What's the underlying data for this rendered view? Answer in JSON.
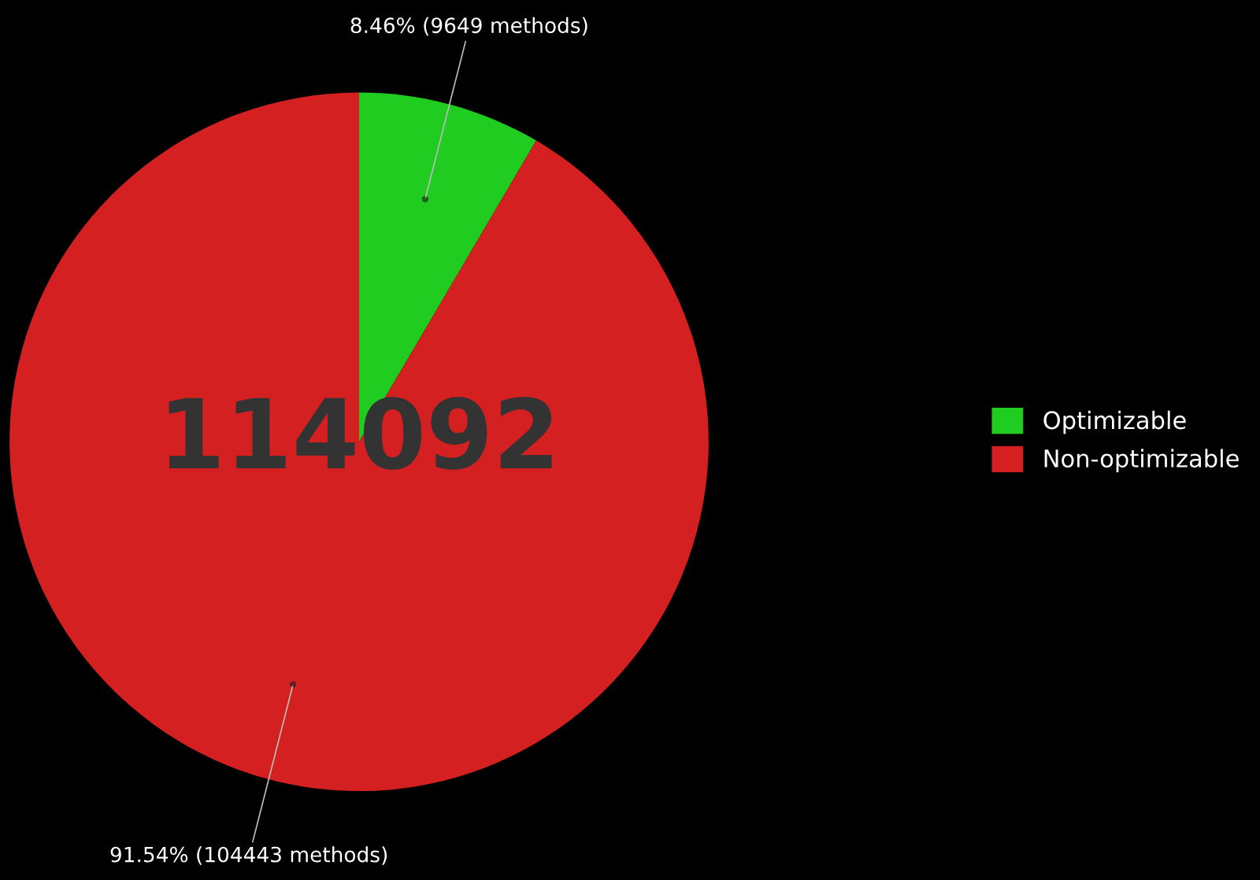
{
  "chart_data": {
    "type": "pie",
    "categories": [
      "Optimizable",
      "Non-optimizable"
    ],
    "values": [
      9649,
      104443
    ],
    "colors": [
      "#1fcc1f",
      "#d42020"
    ],
    "value_labels": [
      "8.46% (9649 methods)",
      "91.54% (104443 methods)"
    ],
    "annotations": [
      "114092"
    ],
    "legend": "right"
  }
}
